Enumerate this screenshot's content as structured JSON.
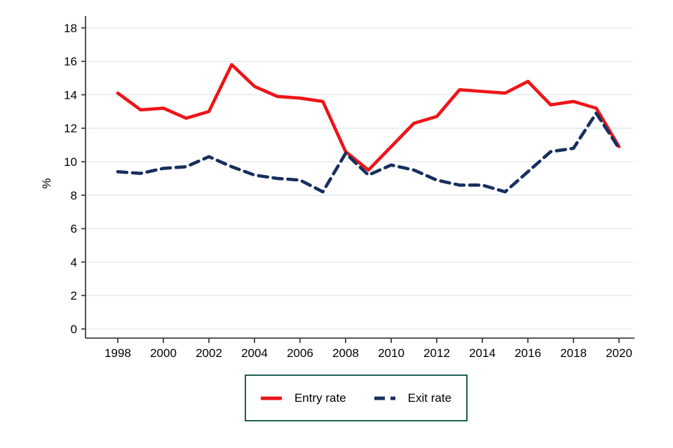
{
  "chart_data": {
    "type": "line",
    "title": "",
    "xlabel": "",
    "ylabel": "%",
    "grid": true,
    "legend_position": "bottom-center",
    "x": [
      1998,
      1999,
      2000,
      2001,
      2002,
      2003,
      2004,
      2005,
      2006,
      2007,
      2008,
      2009,
      2010,
      2011,
      2012,
      2013,
      2014,
      2015,
      2016,
      2017,
      2018,
      2019,
      2020
    ],
    "x_tick_labels": [
      "1998",
      "2000",
      "2002",
      "2004",
      "2006",
      "2008",
      "2010",
      "2012",
      "2014",
      "2016",
      "2018",
      "2020"
    ],
    "y_ticks": [
      0,
      2,
      4,
      6,
      8,
      10,
      12,
      14,
      16,
      18
    ],
    "ylim": [
      0,
      18.7
    ],
    "series": [
      {
        "name": "Entry rate",
        "style": "solid",
        "color": "#ee1418",
        "values": [
          14.1,
          13.1,
          13.2,
          12.6,
          13.0,
          15.8,
          14.5,
          13.9,
          13.8,
          13.6,
          10.6,
          9.5,
          10.9,
          12.3,
          12.7,
          14.3,
          14.2,
          14.1,
          14.8,
          13.4,
          13.6,
          13.2,
          10.9
        ]
      },
      {
        "name": "Exit rate",
        "style": "dashed",
        "color": "#172f5e",
        "values": [
          9.4,
          9.3,
          9.6,
          9.7,
          10.3,
          9.7,
          9.2,
          9.0,
          8.9,
          8.2,
          10.5,
          9.2,
          9.8,
          9.5,
          8.9,
          8.6,
          8.6,
          8.2,
          9.4,
          10.6,
          10.8,
          12.9,
          10.8
        ]
      }
    ],
    "colors": {
      "background": "#ffffff",
      "axis": "#404040",
      "gridline": "#dde8f0",
      "tick_text": "#000000",
      "legend_border": "#1e5f55"
    }
  }
}
